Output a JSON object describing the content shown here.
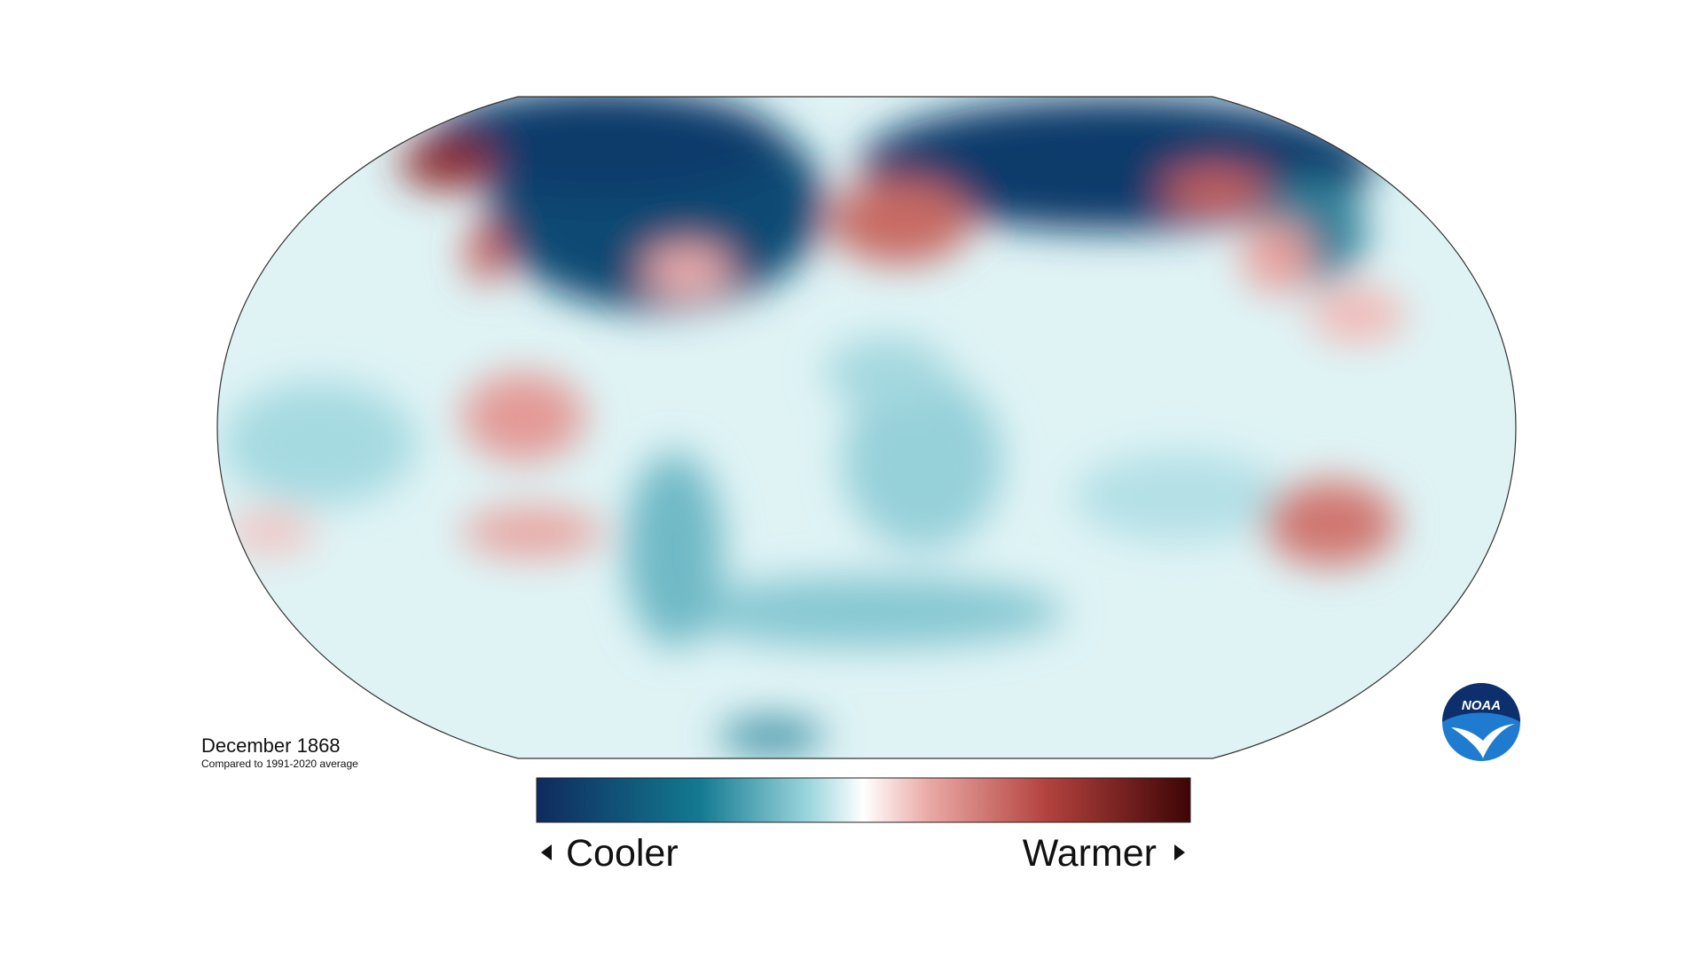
{
  "map": {
    "title": "December 1868",
    "subtitle": "Compared to 1991-2020 average"
  },
  "legend": {
    "low_label": "Cooler",
    "high_label": "Warmer"
  },
  "logo": {
    "text": "NOAA"
  }
}
